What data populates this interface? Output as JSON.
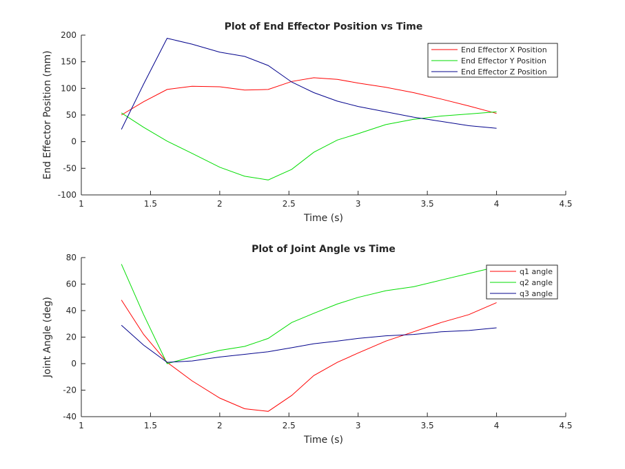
{
  "chart_data": [
    {
      "type": "line",
      "title": "Plot of End Effector Position vs Time",
      "xlabel": "Time (s)",
      "ylabel": "End Effector Position (mm)",
      "xlim": [
        1,
        4.5
      ],
      "ylim": [
        -100,
        200
      ],
      "xticks": [
        "1",
        "1.5",
        "2",
        "2.5",
        "3",
        "3.5",
        "4",
        "4.5"
      ],
      "yticks": [
        "-100",
        "-50",
        "0",
        "50",
        "100",
        "150",
        "200"
      ],
      "grid": false,
      "legend_position": "top-right",
      "series": [
        {
          "name": "End Effector X Position",
          "color": "#ff0000",
          "x": [
            1.29,
            1.45,
            1.62,
            1.8,
            2.0,
            2.18,
            2.35,
            2.52,
            2.68,
            2.85,
            3.0,
            3.2,
            3.4,
            3.6,
            3.8,
            4.0
          ],
          "y": [
            50,
            75,
            98,
            104,
            103,
            97,
            98,
            113,
            120,
            117,
            110,
            102,
            92,
            80,
            67,
            53
          ]
        },
        {
          "name": "End Effector Y Position",
          "color": "#00dd00",
          "x": [
            1.29,
            1.45,
            1.62,
            1.8,
            2.0,
            2.18,
            2.35,
            2.52,
            2.68,
            2.85,
            3.0,
            3.2,
            3.4,
            3.6,
            3.8,
            4.0
          ],
          "y": [
            54,
            27,
            1,
            -22,
            -48,
            -65,
            -72,
            -52,
            -20,
            3,
            15,
            32,
            42,
            48,
            52,
            56
          ]
        },
        {
          "name": "End Effector Z Position",
          "color": "#00008b",
          "x": [
            1.29,
            1.45,
            1.62,
            1.8,
            2.0,
            2.18,
            2.35,
            2.52,
            2.68,
            2.85,
            3.0,
            3.2,
            3.4,
            3.6,
            3.8,
            4.0
          ],
          "y": [
            23,
            108,
            194,
            183,
            168,
            160,
            143,
            112,
            92,
            76,
            66,
            56,
            46,
            38,
            30,
            25
          ]
        }
      ]
    },
    {
      "type": "line",
      "title": "Plot of Joint Angle vs Time",
      "xlabel": "Time (s)",
      "ylabel": "Joint Angle (deg)",
      "xlim": [
        1,
        4.5
      ],
      "ylim": [
        -40,
        80
      ],
      "xticks": [
        "1",
        "1.5",
        "2",
        "2.5",
        "3",
        "3.5",
        "4",
        "4.5"
      ],
      "yticks": [
        "-40",
        "-20",
        "0",
        "20",
        "40",
        "60",
        "80"
      ],
      "grid": false,
      "legend_position": "top-right",
      "series": [
        {
          "name": "q1 angle",
          "color": "#ff0000",
          "x": [
            1.29,
            1.45,
            1.62,
            1.8,
            2.0,
            2.18,
            2.35,
            2.52,
            2.68,
            2.85,
            3.0,
            3.2,
            3.4,
            3.6,
            3.8,
            4.0
          ],
          "y": [
            48,
            22,
            1,
            -13,
            -26,
            -34,
            -36,
            -24,
            -9,
            1,
            8,
            17,
            24,
            31,
            37,
            46
          ]
        },
        {
          "name": "q2 angle",
          "color": "#00dd00",
          "x": [
            1.29,
            1.45,
            1.62,
            1.8,
            2.0,
            2.18,
            2.35,
            2.52,
            2.68,
            2.85,
            3.0,
            3.2,
            3.4,
            3.6,
            3.8,
            4.0
          ],
          "y": [
            75,
            37,
            0,
            5,
            10,
            13,
            19,
            31,
            38,
            45,
            50,
            55,
            58,
            63,
            68,
            73
          ]
        },
        {
          "name": "q3 angle",
          "color": "#00008b",
          "x": [
            1.29,
            1.45,
            1.62,
            1.8,
            2.0,
            2.18,
            2.35,
            2.52,
            2.68,
            2.85,
            3.0,
            3.2,
            3.4,
            3.6,
            3.8,
            4.0
          ],
          "y": [
            29,
            14,
            1,
            2,
            5,
            7,
            9,
            12,
            15,
            17,
            19,
            21,
            22,
            24,
            25,
            27
          ]
        }
      ]
    }
  ]
}
